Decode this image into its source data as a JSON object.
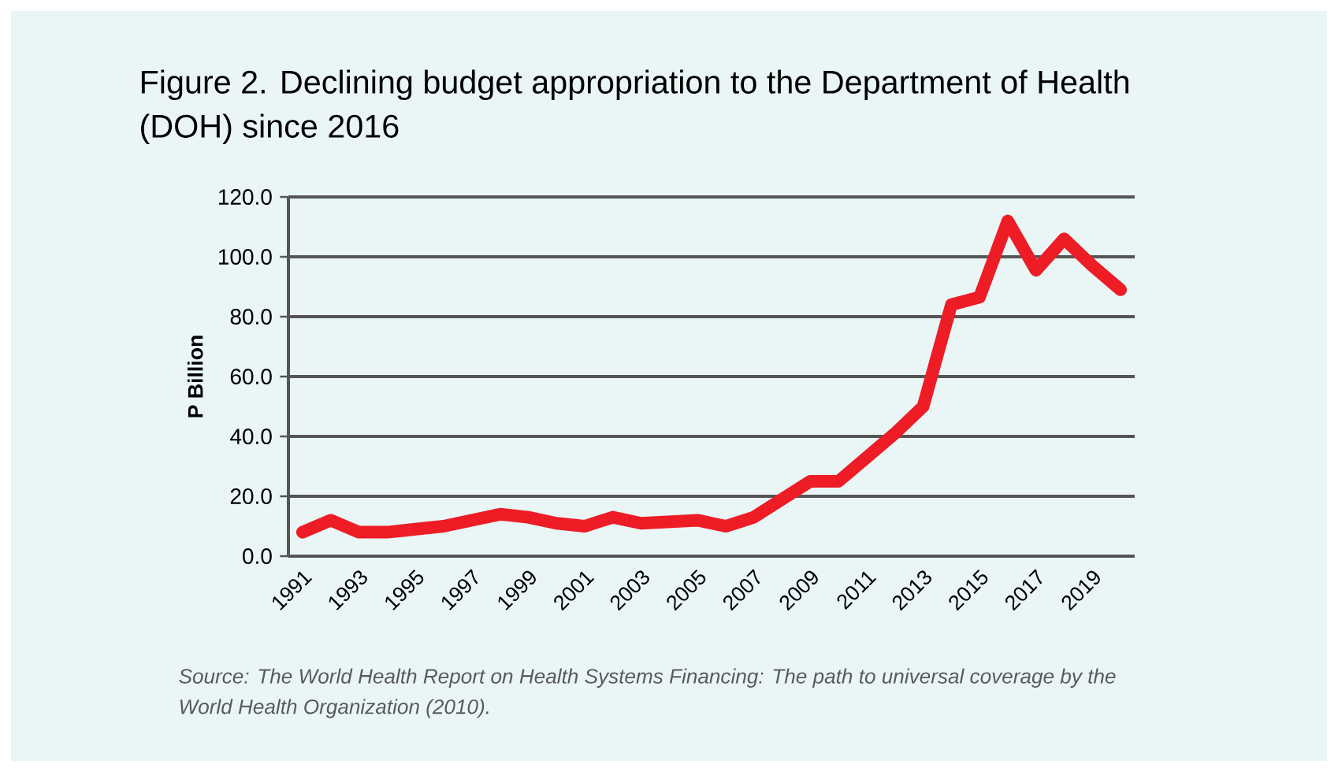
{
  "chart_data": {
    "type": "line",
    "title": "Figure 2. Declining budget appropriation to the Department of Health (DOH) since 2016",
    "ylabel": "P Billion",
    "categories": [
      "1991",
      null,
      "1993",
      null,
      "1995",
      null,
      "1997",
      null,
      "1999",
      null,
      "2001",
      null,
      "2003",
      null,
      "2005",
      null,
      "2007",
      null,
      "2009",
      null,
      "2011",
      null,
      "2013",
      null,
      "2015",
      null,
      "2017",
      null,
      "2019",
      null
    ],
    "series": [
      {
        "color": "#ee1c25",
        "values": [
          8,
          12,
          8,
          8,
          9,
          10,
          12,
          14,
          13,
          11,
          10,
          13,
          11,
          11.5,
          12,
          10,
          13,
          19,
          25,
          25,
          33,
          41,
          50,
          84,
          86.5,
          112,
          95.5,
          106,
          97,
          89
        ]
      }
    ],
    "ylim": [
      0,
      120
    ],
    "yticks": [
      {
        "value": 0,
        "label": "0.0"
      },
      {
        "value": 20,
        "label": "20.0"
      },
      {
        "value": 40,
        "label": "40.0"
      },
      {
        "value": 60,
        "label": "60.0"
      },
      {
        "value": 80,
        "label": "80.0"
      },
      {
        "value": 100,
        "label": "100.0"
      },
      {
        "value": 120,
        "label": "120.0"
      }
    ],
    "grid": "y",
    "marker": "none",
    "line_style": "solid",
    "annotations": [
      "Source: The World Health Report on Health Systems Financing: The path to universal coverage by the World Health Organization (2010)."
    ]
  }
}
